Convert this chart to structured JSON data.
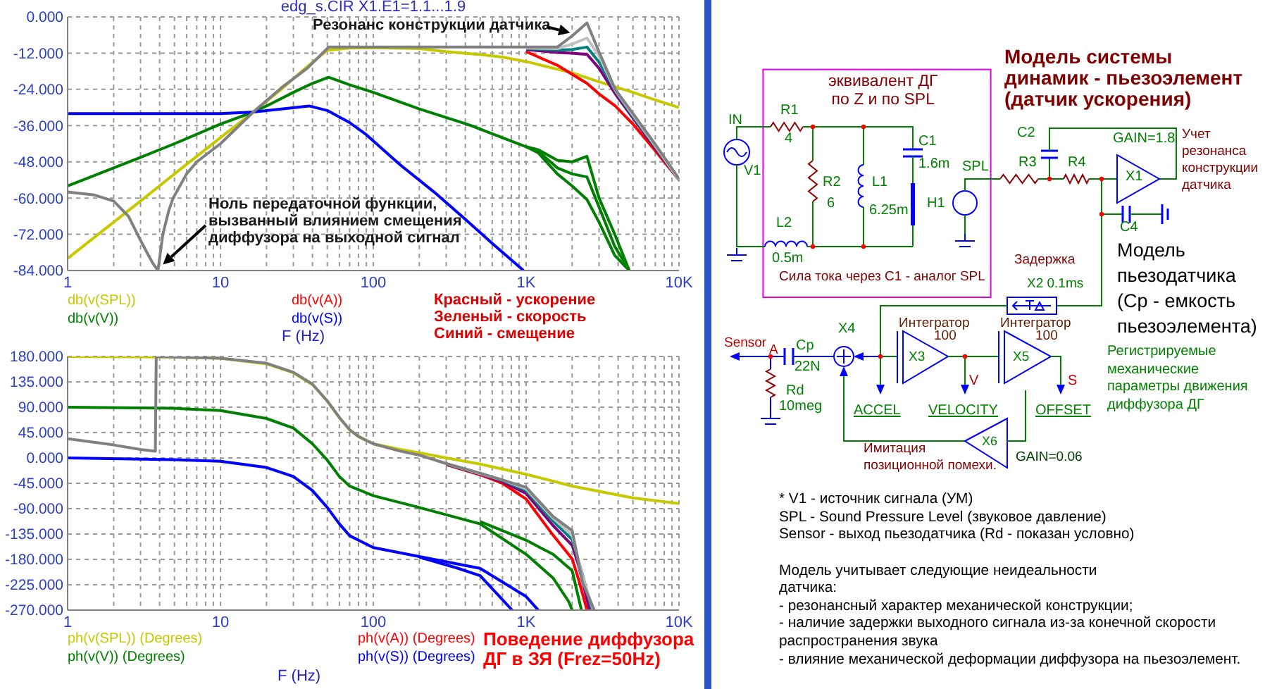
{
  "chart_data": [
    {
      "type": "line",
      "title": "edg_s.CIR X1.E1=1.1...1.9",
      "xlabel": "F (Hz)",
      "log": "x",
      "grid": true,
      "legend": "bottom",
      "xlim": [
        1,
        10000
      ],
      "ylim": [
        -84,
        0
      ],
      "xticks": [
        1,
        {
          "value": 2,
          "label": null
        },
        {
          "value": 3,
          "label": null
        },
        {
          "value": 4,
          "label": null
        },
        {
          "value": 5,
          "label": null
        },
        {
          "value": 6,
          "label": null
        },
        {
          "value": 7,
          "label": null
        },
        {
          "value": 8,
          "label": null
        },
        {
          "value": 9,
          "label": null
        },
        10,
        {
          "value": 20,
          "label": null
        },
        {
          "value": 30,
          "label": null
        },
        {
          "value": 40,
          "label": null
        },
        {
          "value": 50,
          "label": null
        },
        {
          "value": 60,
          "label": null
        },
        {
          "value": 70,
          "label": null
        },
        {
          "value": 80,
          "label": null
        },
        {
          "value": 90,
          "label": null
        },
        100,
        {
          "value": 200,
          "label": null
        },
        {
          "value": 300,
          "label": null
        },
        {
          "value": 400,
          "label": null
        },
        {
          "value": 500,
          "label": null
        },
        {
          "value": 600,
          "label": null
        },
        {
          "value": 700,
          "label": null
        },
        {
          "value": 800,
          "label": null
        },
        {
          "value": 900,
          "label": null
        },
        {
          "value": 1000,
          "label": "1K"
        },
        {
          "value": 2000,
          "label": null
        },
        {
          "value": 3000,
          "label": null
        },
        {
          "value": 4000,
          "label": null
        },
        {
          "value": 5000,
          "label": null
        },
        {
          "value": 6000,
          "label": null
        },
        {
          "value": 7000,
          "label": null
        },
        {
          "value": 8000,
          "label": null
        },
        {
          "value": 9000,
          "label": null
        },
        {
          "value": 10000,
          "label": "10K"
        }
      ],
      "yticks": [
        {
          "value": 0,
          "label": "0.000"
        },
        {
          "value": -12,
          "label": "-12.000"
        },
        {
          "value": -24,
          "label": "-24.000"
        },
        {
          "value": -36,
          "label": "-36.000"
        },
        {
          "value": -48,
          "label": "-48.000"
        },
        {
          "value": -60,
          "label": "-60.000"
        },
        {
          "value": -72,
          "label": "-72.000"
        },
        {
          "value": -84,
          "label": "-84.000"
        }
      ],
      "series": [
        {
          "name": "db(v(SPL))",
          "color": "#c8c800",
          "x": [
            1,
            2,
            3,
            5,
            10,
            16.4,
            25,
            35,
            50,
            70,
            100,
            200,
            300,
            500,
            700,
            1000,
            2000,
            3000,
            5000,
            7000,
            10000
          ],
          "values": [
            -80,
            -68,
            -61,
            -52,
            -40,
            -31.5,
            -24,
            -17.5,
            -11,
            -10.3,
            -10.2,
            -10.5,
            -11.5,
            -12.5,
            -13.3,
            -14.8,
            -18.5,
            -21.5,
            -25,
            -27.5,
            -30
          ]
        },
        {
          "name": "db(v(V))",
          "color": "#008000",
          "x": [
            1,
            2,
            3,
            5,
            10,
            16.4,
            20,
            30,
            40,
            51,
            70,
            100,
            200,
            425,
            1000,
            1200,
            1600,
            2000,
            2500,
            3000,
            3800,
            4730
          ],
          "values": [
            -56,
            -50,
            -46.5,
            -42,
            -35.5,
            -31.5,
            -29.5,
            -25,
            -22,
            -20,
            -22.5,
            -25,
            -30.5,
            -35.8,
            -43,
            -45,
            -52,
            -56,
            -60.5,
            -68,
            -79,
            -84
          ]
        },
        {
          "color": "#008000",
          "x": [
            1000,
            1200,
            1600,
            2000,
            2500,
            3000,
            3800,
            4730
          ],
          "values": [
            -43,
            -44,
            -47.5,
            -48,
            -46.2,
            -60,
            -72,
            -84
          ]
        },
        {
          "color": "#008000",
          "x": [
            1000,
            1200,
            1600,
            2000,
            2500,
            3000,
            3800,
            4730
          ],
          "values": [
            -43,
            -44.5,
            -50,
            -52,
            -53,
            -63,
            -76,
            -84
          ]
        },
        {
          "name": "db(v(A))",
          "color": "#ff0000",
          "x": [
            1000,
            1600,
            2000,
            2500,
            3000,
            3830,
            5000,
            7000,
            10000
          ],
          "values": [
            -11.5,
            -16,
            -19,
            -22,
            -25.5,
            -29.5,
            -35.5,
            -44.3,
            -54
          ]
        },
        {
          "name": "db(v(S))",
          "color": "#0000ff",
          "x": [
            1,
            5,
            10,
            16.4,
            25,
            38,
            50,
            70,
            90,
            150,
            250,
            400,
            600,
            962
          ],
          "values": [
            -32,
            -32,
            -32,
            -31.5,
            -30.5,
            -29.5,
            -31,
            -35,
            -39,
            -49,
            -58,
            -67,
            -75,
            -84
          ]
        },
        {
          "color": "#800080",
          "x": [
            1000,
            1600,
            2000,
            2500,
            3000,
            3830,
            5000,
            7000,
            10000
          ],
          "values": [
            -10.8,
            -11.8,
            -12,
            -12.4,
            -17,
            -25.5,
            -33.5,
            -43.5,
            -54
          ]
        },
        {
          "color": "#008080",
          "x": [
            1000,
            1600,
            2000,
            2500,
            3000,
            3830,
            5000,
            7000,
            10000
          ],
          "values": [
            -10.5,
            -11,
            -10.8,
            -10,
            -15,
            -24.5,
            -33,
            -43,
            -54
          ]
        },
        {
          "color": "#c0c0c0",
          "x": [
            1000,
            1600,
            2000,
            2500,
            3000,
            3830,
            5000,
            7000,
            10000
          ],
          "values": [
            -10.3,
            -10.5,
            -9,
            -7,
            -13,
            -24.3,
            -32.5,
            -42.7,
            -54
          ]
        },
        {
          "color": "#808080",
          "x": [
            1,
            1.5,
            2,
            2.5,
            3,
            3.3,
            3.6,
            3.9,
            4.2,
            4.6,
            4.9,
            6,
            7,
            10,
            16.4,
            25,
            37,
            51,
            70,
            100,
            300,
            700,
            1000,
            1600,
            2000,
            2500,
            3000,
            3830,
            5000,
            7000,
            10000
          ],
          "values": [
            -58,
            -59,
            -61,
            -66,
            -74,
            -78,
            -81.5,
            -84,
            -72,
            -64,
            -60,
            -52,
            -48,
            -42,
            -31.5,
            -23.5,
            -17,
            -10,
            -10,
            -10,
            -10,
            -10,
            -10,
            -10,
            -6.3,
            -2,
            -11.6,
            -24,
            -32,
            -42.2,
            -53.6
          ]
        }
      ],
      "annotations": [
        "Красный - ускорение",
        "Зеленый - скорость",
        "Синий - смещение",
        {
          "text": "Резонанс конструкции датчика",
          "x": 2500,
          "y": -2
        },
        {
          "text": "Ноль передаточной функции, вызванный влиянием смещения диффузора на выходной сигнал",
          "x": 4.2,
          "y": -82
        }
      ]
    },
    {
      "type": "line",
      "xlabel": "F (Hz)",
      "log": "x",
      "grid": true,
      "legend": "bottom",
      "xlim": [
        1,
        10000
      ],
      "ylim": [
        -270,
        180
      ],
      "xticks": [
        1,
        {
          "value": 2,
          "label": null
        },
        {
          "value": 3,
          "label": null
        },
        {
          "value": 4,
          "label": null
        },
        {
          "value": 5,
          "label": null
        },
        {
          "value": 6,
          "label": null
        },
        {
          "value": 7,
          "label": null
        },
        {
          "value": 8,
          "label": null
        },
        {
          "value": 9,
          "label": null
        },
        10,
        {
          "value": 20,
          "label": null
        },
        {
          "value": 30,
          "label": null
        },
        {
          "value": 40,
          "label": null
        },
        {
          "value": 50,
          "label": null
        },
        {
          "value": 60,
          "label": null
        },
        {
          "value": 70,
          "label": null
        },
        {
          "value": 80,
          "label": null
        },
        {
          "value": 90,
          "label": null
        },
        100,
        {
          "value": 200,
          "label": null
        },
        {
          "value": 300,
          "label": null
        },
        {
          "value": 400,
          "label": null
        },
        {
          "value": 500,
          "label": null
        },
        {
          "value": 600,
          "label": null
        },
        {
          "value": 700,
          "label": null
        },
        {
          "value": 800,
          "label": null
        },
        {
          "value": 900,
          "label": null
        },
        {
          "value": 1000,
          "label": "1K"
        },
        {
          "value": 2000,
          "label": null
        },
        {
          "value": 3000,
          "label": null
        },
        {
          "value": 4000,
          "label": null
        },
        {
          "value": 5000,
          "label": null
        },
        {
          "value": 6000,
          "label": null
        },
        {
          "value": 7000,
          "label": null
        },
        {
          "value": 8000,
          "label": null
        },
        {
          "value": 9000,
          "label": null
        },
        {
          "value": 10000,
          "label": "10K"
        }
      ],
      "yticks": [
        {
          "value": 180,
          "label": "180.000"
        },
        {
          "value": 135,
          "label": "135.000"
        },
        {
          "value": 90,
          "label": "90.000"
        },
        {
          "value": 45,
          "label": "45.000"
        },
        {
          "value": 0,
          "label": "0.000"
        },
        {
          "value": -45,
          "label": "-45.000"
        },
        {
          "value": -90,
          "label": "-90.000"
        },
        {
          "value": -135,
          "label": "-135.000"
        },
        {
          "value": -180,
          "label": "-180.000"
        },
        {
          "value": -225,
          "label": "-225.000"
        },
        {
          "value": -270,
          "label": "-270.000"
        }
      ],
      "series": [
        {
          "name": "ph(v(SPL)) (Degrees)",
          "color": "#c8c800",
          "x": [
            1,
            5,
            10,
            20,
            30,
            40,
            50,
            60,
            70,
            80,
            100,
            150,
            200,
            300,
            500,
            1000,
            2000,
            5000,
            10000
          ],
          "values": [
            180,
            179,
            177,
            167,
            151,
            130,
            101,
            71,
            50,
            38,
            25,
            15,
            9,
            0,
            -11,
            -29,
            -50,
            -71,
            -81
          ]
        },
        {
          "name": "ph(v(V)) (Degrees)",
          "color": "#008000",
          "x": [
            1,
            5,
            10,
            20,
            30,
            40,
            50,
            60,
            70,
            100,
            200,
            500,
            1000,
            1500,
            1900,
            2000
          ],
          "values": [
            90,
            88,
            84,
            70,
            53,
            25,
            -4,
            -33,
            -50,
            -67,
            -88,
            -117,
            -171,
            -213,
            -255,
            -270
          ]
        },
        {
          "color": "#008000",
          "x": [
            500,
            1000,
            1500,
            2000,
            2300
          ],
          "values": [
            -113,
            -146,
            -171,
            -200,
            -270
          ]
        },
        {
          "name": "ph(v(A)) (Degrees)",
          "color": "#ff0000",
          "x": [
            300,
            500,
            700,
            1000,
            1500,
            2000,
            2200,
            2500
          ],
          "values": [
            -12,
            -30,
            -45,
            -73,
            -137,
            -179,
            -215,
            -270
          ]
        },
        {
          "name": "ph(v(S)) (Degrees)",
          "color": "#0000ff",
          "x": [
            1,
            5,
            10,
            20,
            30,
            40,
            50,
            60,
            70,
            100,
            200,
            500,
            1000,
            1200
          ],
          "values": [
            0,
            -3,
            -6,
            -17,
            -33,
            -58,
            -88,
            -117,
            -138,
            -159,
            -175,
            -196,
            -246,
            -270
          ]
        },
        {
          "color": "#0000ff",
          "x": [
            200,
            350,
            500,
            810
          ],
          "values": [
            -176,
            -195,
            -209,
            -270
          ]
        },
        {
          "color": "#800080",
          "x": [
            300,
            500,
            700,
            1000,
            1500,
            2000,
            2200,
            2600
          ],
          "values": [
            -11,
            -29,
            -42,
            -63,
            -120,
            -155,
            -190,
            -270
          ]
        },
        {
          "color": "#008080",
          "x": [
            300,
            500,
            700,
            1000,
            1500,
            2000,
            2300,
            2700
          ],
          "values": [
            -11,
            -28,
            -40,
            -58,
            -112,
            -145,
            -200,
            -270
          ]
        },
        {
          "color": "#c0c0c0",
          "x": [
            300,
            500,
            700,
            1000,
            1500,
            2000,
            2340,
            2750
          ],
          "values": [
            -10,
            -28,
            -39,
            -55,
            -107,
            -137,
            -210,
            -270
          ]
        },
        {
          "color": "#808080",
          "x": [
            1,
            2,
            3,
            3.75,
            3.8,
            5,
            10,
            20,
            30,
            40,
            50,
            60,
            70,
            80,
            100,
            150,
            200,
            300,
            500,
            1000,
            1500,
            2000,
            2340,
            2790
          ],
          "values": [
            34,
            23,
            15,
            12,
            180,
            179,
            177,
            168,
            152,
            131,
            101,
            72,
            50,
            38,
            25,
            12,
            5,
            -10,
            -27,
            -52,
            -104,
            -129,
            -221,
            -270
          ]
        }
      ],
      "annotations": [
        "Поведение диффузора ДГ в ЗЯ (Frez=50Hz)"
      ]
    },
    {
      "type": "other",
      "title": "Модель системы динамик - пьезоэлемент (датчик ускорения)",
      "annotations": [
        "эквивалент ДГ по Z и по SPL",
        "IN",
        "R1",
        "4",
        "V1",
        "R2",
        "6",
        "L1",
        "6.25m",
        "L2",
        "0.5m",
        "C1",
        "1.6m",
        "SPL",
        "H1",
        "C2",
        "R3",
        "R4",
        "GAIN=1.8",
        "X1",
        "C4",
        "Учет резонанса конструкции датчика",
        "Сила тока через C1 - аналог SPL",
        "Модель пьезодатчика (Cp - емкость пьезоэлемента)",
        "Задержка",
        "X2 0.1ms",
        "Sensor",
        "A",
        "Cp",
        "22N",
        "Rd",
        "10meg",
        "X4",
        "Интегратор",
        "100",
        "X3",
        "V",
        "Интегратор",
        "100",
        "X5",
        "S",
        "ACCEL",
        "VELOCITY",
        "OFFSET",
        "Регистрируемые механические параметры движения диффузора ДГ",
        "Имитация позиционной помехи.",
        "X6",
        "GAIN=0.06",
        "* V1 - источник сигнала (УМ)",
        "SPL - Sound Pressure Level (звуковое давление)",
        "Sensor - выход пьезодатчика (Rd - показан условно)",
        "Модель учитывает следующие неидеальности датчика:",
        "- резонансный характер механической конструкции;",
        "- наличие задержки выходного сигнала из-за конечной скорости распространения звука",
        "- влияние механической деформации диффузора на пьезоэлемент."
      ]
    }
  ]
}
